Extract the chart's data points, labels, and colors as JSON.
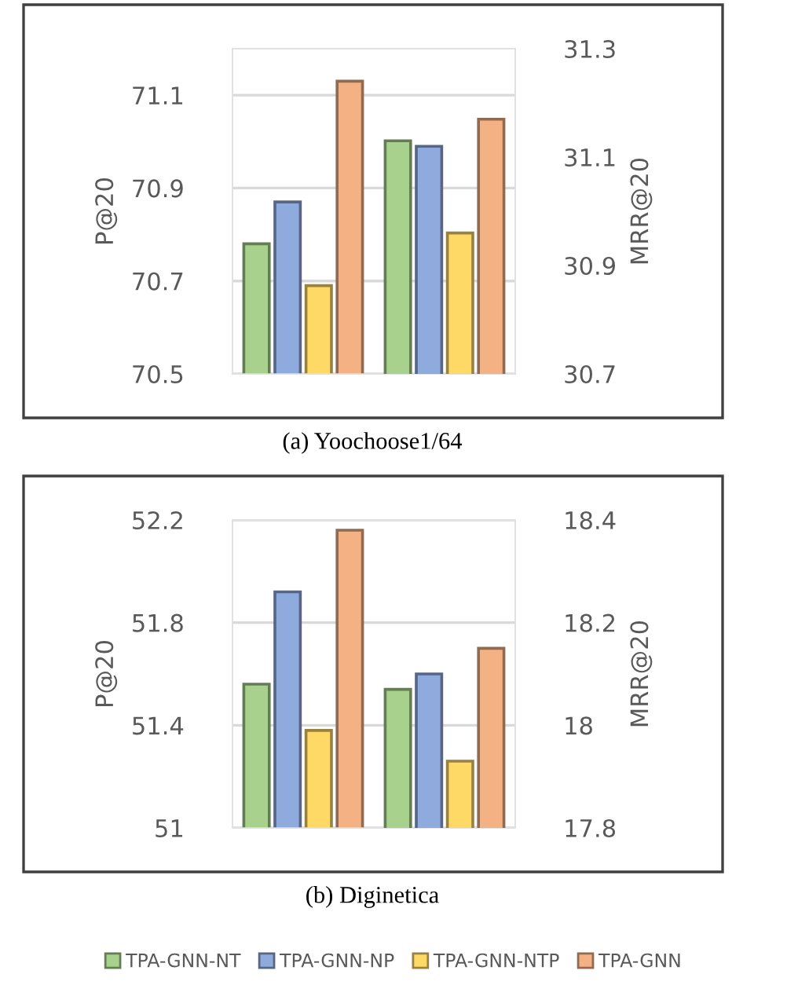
{
  "chart_data": [
    {
      "type": "bar",
      "title": "(a) Yoochoose1/64",
      "ylabel": "P@20",
      "y2label": "MRR@20",
      "categories": [
        null,
        null
      ],
      "ylim": [
        70.5,
        71.2
      ],
      "yticks": [
        70.5,
        70.7,
        70.9,
        71.1
      ],
      "y2lim": [
        30.7,
        31.3
      ],
      "y2ticks": [
        30.7,
        30.9,
        31.1,
        31.3
      ],
      "grid": "y",
      "series": [
        {
          "color": "#a9d18e",
          "values": [
            70.78,
            null
          ]
        },
        {
          "color": "#8faadc",
          "values": [
            70.87,
            null
          ]
        },
        {
          "color": "#ffd966",
          "values": [
            70.69,
            null
          ]
        },
        {
          "color": "#f4b183",
          "values": [
            71.13,
            null
          ]
        },
        {
          "color": "#a9d18e",
          "axis": "y2",
          "values": [
            null,
            31.13
          ]
        },
        {
          "color": "#8faadc",
          "axis": "y2",
          "values": [
            null,
            31.12
          ]
        },
        {
          "color": "#ffd966",
          "axis": "y2",
          "values": [
            null,
            30.96
          ]
        },
        {
          "color": "#f4b183",
          "axis": "y2",
          "values": [
            null,
            31.17
          ]
        }
      ]
    },
    {
      "type": "bar",
      "title": "(b) Diginetica",
      "ylabel": "P@20",
      "y2label": "MRR@20",
      "categories": [
        null,
        null
      ],
      "ylim": [
        51,
        52.2
      ],
      "yticks": [
        51,
        51.4,
        51.8,
        52.2
      ],
      "y2lim": [
        17.8,
        18.4
      ],
      "y2ticks": [
        17.8,
        18,
        18.2,
        18.4
      ],
      "grid": "y",
      "legend": "bottom",
      "series": [
        {
          "name": "TPA-GNN-NT",
          "color": "#a9d18e",
          "values": [
            51.56,
            null
          ]
        },
        {
          "name": "TPA-GNN-NP",
          "color": "#8faadc",
          "values": [
            51.92,
            null
          ]
        },
        {
          "name": "TPA-GNN-NTP",
          "color": "#ffd966",
          "values": [
            51.38,
            null
          ]
        },
        {
          "name": "TPA-GNN",
          "color": "#f4b183",
          "values": [
            52.16,
            null
          ]
        },
        {
          "color": "#a9d18e",
          "axis": "y2",
          "values": [
            null,
            18.07
          ]
        },
        {
          "color": "#8faadc",
          "axis": "y2",
          "values": [
            null,
            18.1
          ]
        },
        {
          "color": "#ffd966",
          "axis": "y2",
          "values": [
            null,
            17.93
          ]
        },
        {
          "color": "#f4b183",
          "axis": "y2",
          "values": [
            null,
            18.15
          ]
        }
      ]
    }
  ]
}
